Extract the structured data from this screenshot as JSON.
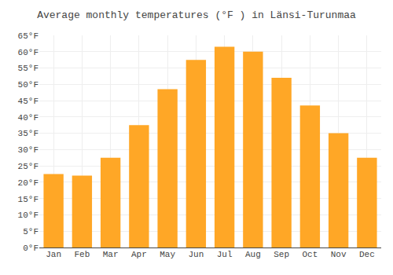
{
  "chart_data": {
    "type": "bar",
    "title": "Average monthly temperatures (°F ) in Länsi-Turunmaa",
    "categories": [
      "Jan",
      "Feb",
      "Mar",
      "Apr",
      "May",
      "Jun",
      "Jul",
      "Aug",
      "Sep",
      "Oct",
      "Nov",
      "Dec"
    ],
    "values": [
      22.5,
      22.0,
      27.5,
      37.5,
      48.5,
      57.5,
      61.5,
      60.0,
      52.0,
      43.5,
      35.0,
      27.5
    ],
    "color": "#FFA726",
    "ylim": [
      0,
      65
    ],
    "yticks": [
      {
        "value": 0,
        "label": "0°F"
      },
      {
        "value": 5,
        "label": "5°F"
      },
      {
        "value": 10,
        "label": "10°F"
      },
      {
        "value": 15,
        "label": "15°F"
      },
      {
        "value": 20,
        "label": "20°F"
      },
      {
        "value": 25,
        "label": "25°F"
      },
      {
        "value": 30,
        "label": "30°F"
      },
      {
        "value": 35,
        "label": "35°F"
      },
      {
        "value": 40,
        "label": "40°F"
      },
      {
        "value": 45,
        "label": "45°F"
      },
      {
        "value": 50,
        "label": "50°F"
      },
      {
        "value": 55,
        "label": "55°F"
      },
      {
        "value": 60,
        "label": "60°F"
      },
      {
        "value": 65,
        "label": "65°F"
      }
    ],
    "grid": true
  }
}
